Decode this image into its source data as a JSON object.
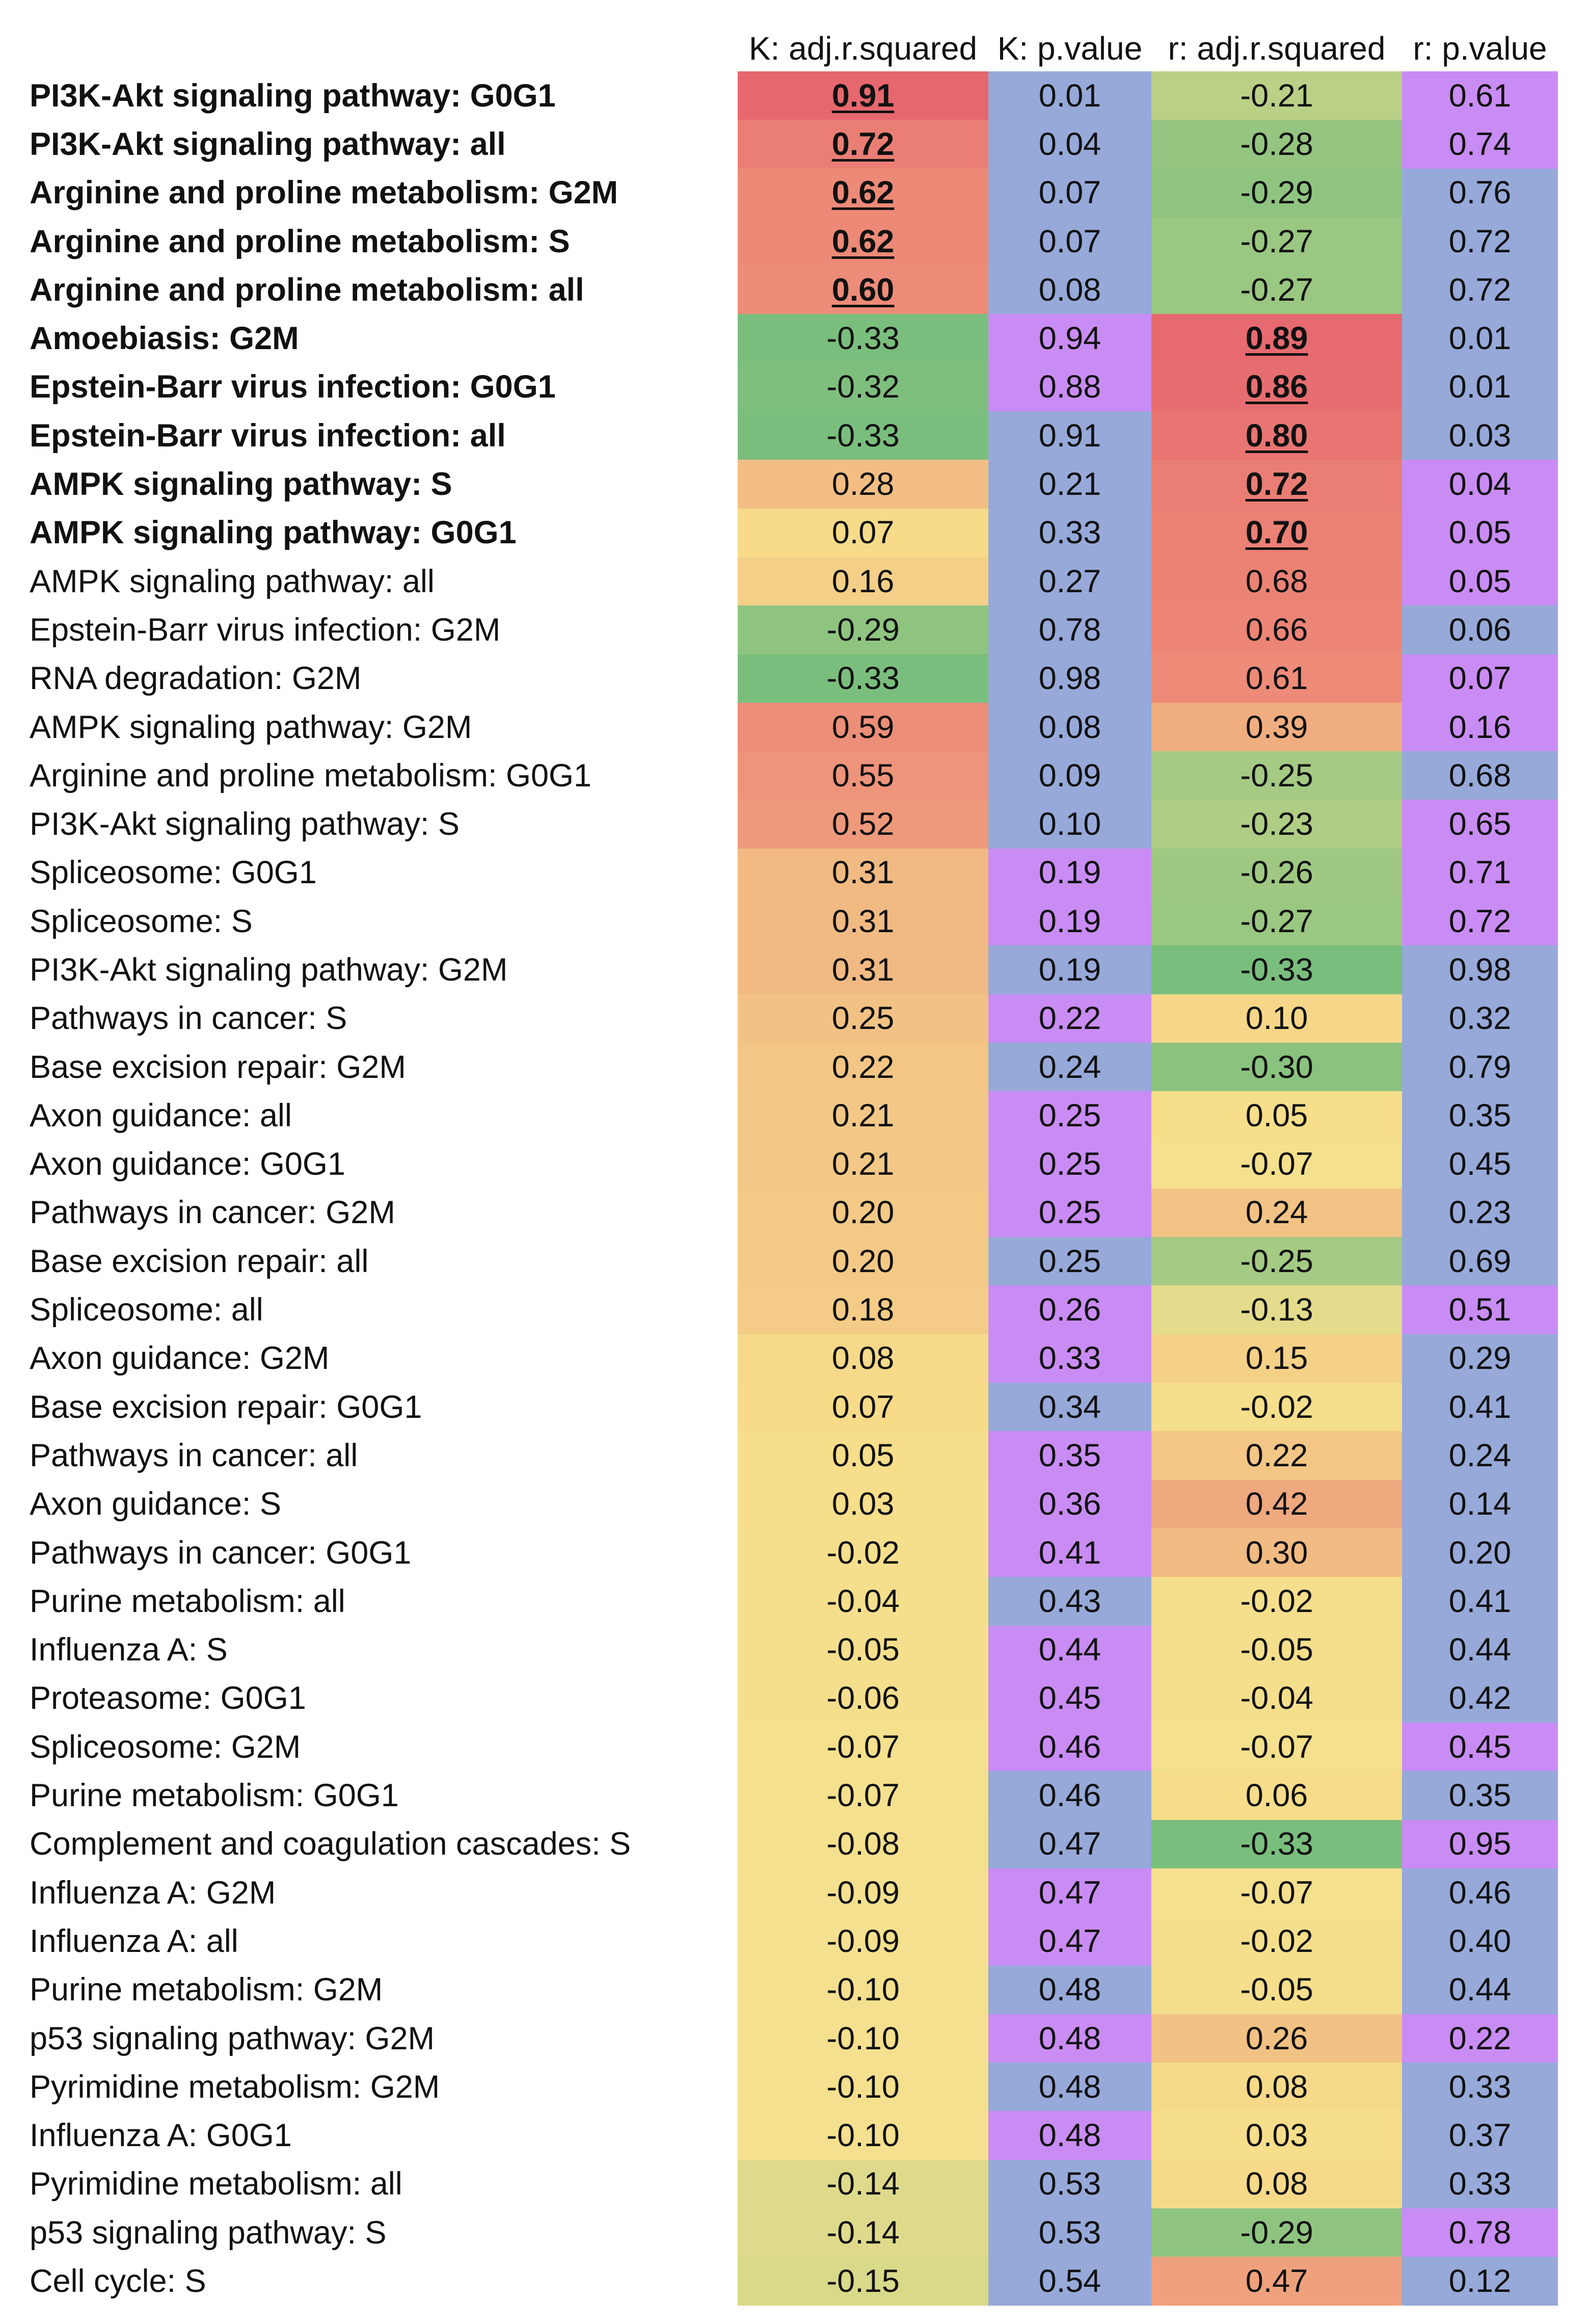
{
  "chart_data": {
    "type": "table",
    "columns": [
      "K: adj.r.squared",
      "K: p.value",
      "r: adj.r.squared",
      "r: p.value"
    ],
    "rows": [
      {
        "label": "PI3K-Akt signaling pathway: G0G1",
        "bold": true,
        "values": [
          "0.91",
          "0.01",
          "-0.21",
          "0.61"
        ],
        "highlight": [
          0
        ]
      },
      {
        "label": "PI3K-Akt signaling pathway: all",
        "bold": true,
        "values": [
          "0.72",
          "0.04",
          "-0.28",
          "0.74"
        ],
        "highlight": [
          0
        ]
      },
      {
        "label": "Arginine and proline metabolism: G2M",
        "bold": true,
        "values": [
          "0.62",
          "0.07",
          "-0.29",
          "0.76"
        ],
        "highlight": [
          0
        ]
      },
      {
        "label": "Arginine and proline metabolism: S",
        "bold": true,
        "values": [
          "0.62",
          "0.07",
          "-0.27",
          "0.72"
        ],
        "highlight": [
          0
        ]
      },
      {
        "label": "Arginine and proline metabolism: all",
        "bold": true,
        "values": [
          "0.60",
          "0.08",
          "-0.27",
          "0.72"
        ],
        "highlight": [
          0
        ]
      },
      {
        "label": "Amoebiasis: G2M",
        "bold": true,
        "values": [
          "-0.33",
          "0.94",
          "0.89",
          "0.01"
        ],
        "highlight": [
          2
        ]
      },
      {
        "label": "Epstein-Barr virus infection: G0G1",
        "bold": true,
        "values": [
          "-0.32",
          "0.88",
          "0.86",
          "0.01"
        ],
        "highlight": [
          2
        ]
      },
      {
        "label": "Epstein-Barr virus infection: all",
        "bold": true,
        "values": [
          "-0.33",
          "0.91",
          "0.80",
          "0.03"
        ],
        "highlight": [
          2
        ]
      },
      {
        "label": "AMPK signaling pathway: S",
        "bold": true,
        "values": [
          "0.28",
          "0.21",
          "0.72",
          "0.04"
        ],
        "highlight": [
          2
        ]
      },
      {
        "label": "AMPK signaling pathway: G0G1",
        "bold": true,
        "values": [
          "0.07",
          "0.33",
          "0.70",
          "0.05"
        ],
        "highlight": [
          2
        ]
      },
      {
        "label": "AMPK signaling pathway: all",
        "bold": false,
        "values": [
          "0.16",
          "0.27",
          "0.68",
          "0.05"
        ],
        "highlight": []
      },
      {
        "label": "Epstein-Barr virus infection: G2M",
        "bold": false,
        "values": [
          "-0.29",
          "0.78",
          "0.66",
          "0.06"
        ],
        "highlight": []
      },
      {
        "label": "RNA degradation: G2M",
        "bold": false,
        "values": [
          "-0.33",
          "0.98",
          "0.61",
          "0.07"
        ],
        "highlight": []
      },
      {
        "label": "AMPK signaling pathway: G2M",
        "bold": false,
        "values": [
          "0.59",
          "0.08",
          "0.39",
          "0.16"
        ],
        "highlight": []
      },
      {
        "label": "Arginine and proline metabolism: G0G1",
        "bold": false,
        "values": [
          "0.55",
          "0.09",
          "-0.25",
          "0.68"
        ],
        "highlight": []
      },
      {
        "label": "PI3K-Akt signaling pathway: S",
        "bold": false,
        "values": [
          "0.52",
          "0.10",
          "-0.23",
          "0.65"
        ],
        "highlight": []
      },
      {
        "label": "Spliceosome: G0G1",
        "bold": false,
        "values": [
          "0.31",
          "0.19",
          "-0.26",
          "0.71"
        ],
        "highlight": []
      },
      {
        "label": "Spliceosome: S",
        "bold": false,
        "values": [
          "0.31",
          "0.19",
          "-0.27",
          "0.72"
        ],
        "highlight": []
      },
      {
        "label": "PI3K-Akt signaling pathway: G2M",
        "bold": false,
        "values": [
          "0.31",
          "0.19",
          "-0.33",
          "0.98"
        ],
        "highlight": []
      },
      {
        "label": "Pathways in cancer: S",
        "bold": false,
        "values": [
          "0.25",
          "0.22",
          "0.10",
          "0.32"
        ],
        "highlight": []
      },
      {
        "label": "Base excision repair: G2M",
        "bold": false,
        "values": [
          "0.22",
          "0.24",
          "-0.30",
          "0.79"
        ],
        "highlight": []
      },
      {
        "label": "Axon guidance: all",
        "bold": false,
        "values": [
          "0.21",
          "0.25",
          "0.05",
          "0.35"
        ],
        "highlight": []
      },
      {
        "label": "Axon guidance: G0G1",
        "bold": false,
        "values": [
          "0.21",
          "0.25",
          "-0.07",
          "0.45"
        ],
        "highlight": []
      },
      {
        "label": "Pathways in cancer: G2M",
        "bold": false,
        "values": [
          "0.20",
          "0.25",
          "0.24",
          "0.23"
        ],
        "highlight": []
      },
      {
        "label": "Base excision repair: all",
        "bold": false,
        "values": [
          "0.20",
          "0.25",
          "-0.25",
          "0.69"
        ],
        "highlight": []
      },
      {
        "label": "Spliceosome: all",
        "bold": false,
        "values": [
          "0.18",
          "0.26",
          "-0.13",
          "0.51"
        ],
        "highlight": []
      },
      {
        "label": "Axon guidance: G2M",
        "bold": false,
        "values": [
          "0.08",
          "0.33",
          "0.15",
          "0.29"
        ],
        "highlight": []
      },
      {
        "label": "Base excision repair: G0G1",
        "bold": false,
        "values": [
          "0.07",
          "0.34",
          "-0.02",
          "0.41"
        ],
        "highlight": []
      },
      {
        "label": "Pathways in cancer: all",
        "bold": false,
        "values": [
          "0.05",
          "0.35",
          "0.22",
          "0.24"
        ],
        "highlight": []
      },
      {
        "label": "Axon guidance: S",
        "bold": false,
        "values": [
          "0.03",
          "0.36",
          "0.42",
          "0.14"
        ],
        "highlight": []
      },
      {
        "label": "Pathways in cancer: G0G1",
        "bold": false,
        "values": [
          "-0.02",
          "0.41",
          "0.30",
          "0.20"
        ],
        "highlight": []
      },
      {
        "label": "Purine metabolism: all",
        "bold": false,
        "values": [
          "-0.04",
          "0.43",
          "-0.02",
          "0.41"
        ],
        "highlight": []
      },
      {
        "label": "Influenza A: S",
        "bold": false,
        "values": [
          "-0.05",
          "0.44",
          "-0.05",
          "0.44"
        ],
        "highlight": []
      },
      {
        "label": "Proteasome: G0G1",
        "bold": false,
        "values": [
          "-0.06",
          "0.45",
          "-0.04",
          "0.42"
        ],
        "highlight": []
      },
      {
        "label": "Spliceosome: G2M",
        "bold": false,
        "values": [
          "-0.07",
          "0.46",
          "-0.07",
          "0.45"
        ],
        "highlight": []
      },
      {
        "label": "Purine metabolism: G0G1",
        "bold": false,
        "values": [
          "-0.07",
          "0.46",
          "0.06",
          "0.35"
        ],
        "highlight": []
      },
      {
        "label": "Complement and coagulation cascades: S",
        "bold": false,
        "values": [
          "-0.08",
          "0.47",
          "-0.33",
          "0.95"
        ],
        "highlight": []
      },
      {
        "label": "Influenza A: G2M",
        "bold": false,
        "values": [
          "-0.09",
          "0.47",
          "-0.07",
          "0.46"
        ],
        "highlight": []
      },
      {
        "label": "Influenza A: all",
        "bold": false,
        "values": [
          "-0.09",
          "0.47",
          "-0.02",
          "0.40"
        ],
        "highlight": []
      },
      {
        "label": "Purine metabolism: G2M",
        "bold": false,
        "values": [
          "-0.10",
          "0.48",
          "-0.05",
          "0.44"
        ],
        "highlight": []
      },
      {
        "label": "p53 signaling pathway: G2M",
        "bold": false,
        "values": [
          "-0.10",
          "0.48",
          "0.26",
          "0.22"
        ],
        "highlight": []
      },
      {
        "label": "Pyrimidine metabolism: G2M",
        "bold": false,
        "values": [
          "-0.10",
          "0.48",
          "0.08",
          "0.33"
        ],
        "highlight": []
      },
      {
        "label": "Influenza A: G0G1",
        "bold": false,
        "values": [
          "-0.10",
          "0.48",
          "0.03",
          "0.37"
        ],
        "highlight": []
      },
      {
        "label": "Pyrimidine metabolism: all",
        "bold": false,
        "values": [
          "-0.14",
          "0.53",
          "0.08",
          "0.33"
        ],
        "highlight": []
      },
      {
        "label": "p53 signaling pathway: S",
        "bold": false,
        "values": [
          "-0.14",
          "0.53",
          "-0.29",
          "0.78"
        ],
        "highlight": []
      },
      {
        "label": "Cell cycle: S",
        "bold": false,
        "values": [
          "-0.15",
          "0.54",
          "0.47",
          "0.12"
        ],
        "highlight": []
      }
    ],
    "pvalue_colors": {
      "blue": "#96a9d9",
      "purple": "#c98cf4"
    },
    "pvalue_color_seq": [
      [
        "blue",
        "purple"
      ],
      [
        "blue",
        "purple"
      ],
      [
        "blue",
        "blue"
      ],
      [
        "blue",
        "blue"
      ],
      [
        "blue",
        "blue"
      ],
      [
        "purple",
        "blue"
      ],
      [
        "purple",
        "blue"
      ],
      [
        "blue",
        "blue"
      ],
      [
        "blue",
        "purple"
      ],
      [
        "blue",
        "purple"
      ],
      [
        "blue",
        "purple"
      ],
      [
        "blue",
        "blue"
      ],
      [
        "blue",
        "purple"
      ],
      [
        "blue",
        "purple"
      ],
      [
        "blue",
        "blue"
      ],
      [
        "blue",
        "purple"
      ],
      [
        "purple",
        "purple"
      ],
      [
        "purple",
        "purple"
      ],
      [
        "blue",
        "blue"
      ],
      [
        "purple",
        "blue"
      ],
      [
        "blue",
        "blue"
      ],
      [
        "purple",
        "blue"
      ],
      [
        "purple",
        "blue"
      ],
      [
        "purple",
        "blue"
      ],
      [
        "blue",
        "blue"
      ],
      [
        "purple",
        "purple"
      ],
      [
        "purple",
        "blue"
      ],
      [
        "blue",
        "blue"
      ],
      [
        "purple",
        "blue"
      ],
      [
        "purple",
        "blue"
      ],
      [
        "purple",
        "blue"
      ],
      [
        "blue",
        "blue"
      ],
      [
        "purple",
        "blue"
      ],
      [
        "purple",
        "blue"
      ],
      [
        "purple",
        "purple"
      ],
      [
        "blue",
        "blue"
      ],
      [
        "blue",
        "purple"
      ],
      [
        "purple",
        "blue"
      ],
      [
        "purple",
        "blue"
      ],
      [
        "blue",
        "blue"
      ],
      [
        "purple",
        "purple"
      ],
      [
        "blue",
        "blue"
      ],
      [
        "purple",
        "blue"
      ],
      [
        "blue",
        "blue"
      ],
      [
        "blue",
        "purple"
      ],
      [
        "blue",
        "blue"
      ]
    ]
  }
}
